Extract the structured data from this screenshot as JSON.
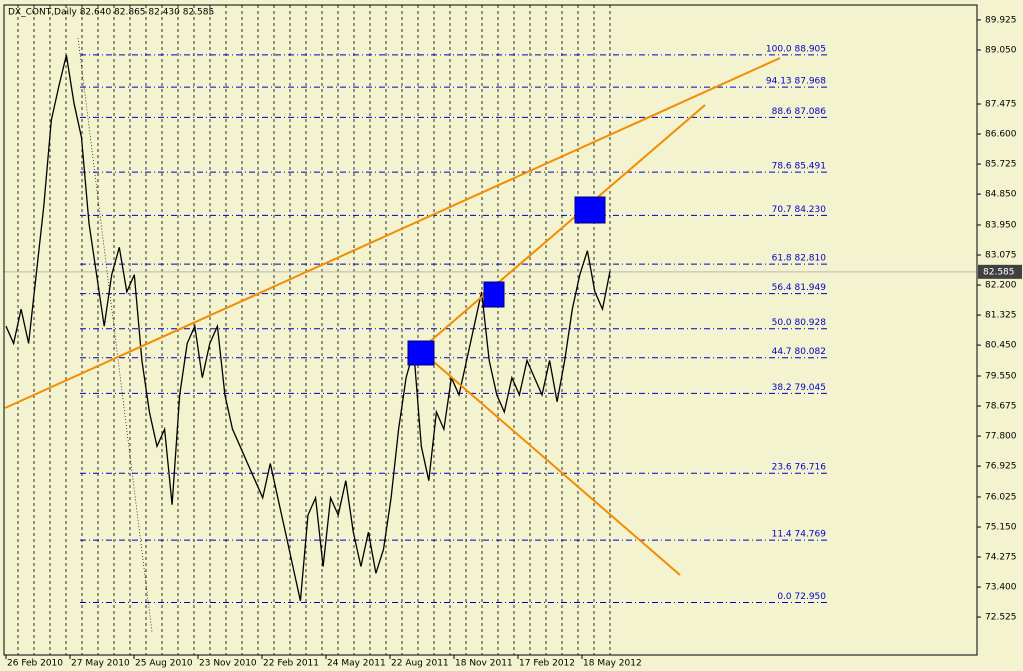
{
  "chart_data": {
    "type": "line",
    "title": "DX_CONT,Daily  82.640 82.865 82.430 82.585",
    "color": "#000000",
    "background": "#f4f3cf",
    "ylim": [
      71.42,
      90.36
    ],
    "yticks": [
      89.925,
      {
        "value": 89.05,
        "label": "89.050"
      },
      87.475,
      {
        "value": 86.6,
        "label": "86.600"
      },
      85.725,
      {
        "value": 84.85,
        "label": "84.850"
      },
      {
        "value": 83.95,
        "label": "83.950"
      },
      83.075,
      {
        "value": 82.2,
        "label": "82.200"
      },
      81.325,
      {
        "value": 80.45,
        "label": "80.450"
      },
      {
        "value": 79.55,
        "label": "79.550"
      },
      78.675,
      {
        "value": 77.8,
        "label": "77.800"
      },
      76.925,
      76.025,
      {
        "value": 75.15,
        "label": "75.150"
      },
      74.275,
      {
        "value": 73.4,
        "label": "73.400"
      },
      72.525
    ],
    "current_price": 82.585,
    "x_labels": [
      "26 Feb 2010",
      "27 May 2010",
      "25 Aug 2010",
      "23 Nov 2010",
      "22 Feb 2011",
      "24 May 2011",
      "22 Aug 2011",
      "18 Nov 2011",
      "17 Feb 2012",
      "18 May 2012"
    ],
    "fib_color": "#0000c8",
    "fib_levels": [
      {
        "label": "100.0 88.905",
        "value": 88.905
      },
      {
        "label": "94.13 87.968",
        "value": 87.968
      },
      {
        "label": "88.6 87.086",
        "value": 87.086
      },
      {
        "label": "78.6 85.491",
        "value": 85.491
      },
      {
        "label": "70.7 84.230",
        "value": 84.23
      },
      {
        "label": "61.8 82.810",
        "value": 82.81
      },
      {
        "label": "56.4 81.949",
        "value": 81.949
      },
      {
        "label": "50.0 80.928",
        "value": 80.928
      },
      {
        "label": "44.7 80.082",
        "value": 80.082
      },
      {
        "label": "38.2 79.045",
        "value": 79.045
      },
      {
        "label": "23.6 76.716",
        "value": 76.716
      },
      {
        "label": "11.4 74.769",
        "value": 74.769
      },
      {
        "label": "0.0 72.950",
        "value": 72.95
      }
    ],
    "values": [
      81.0,
      80.5,
      81.5,
      80.5,
      82.5,
      84.5,
      87.0,
      88.0,
      88.9,
      87.5,
      86.5,
      84.0,
      82.5,
      81.0,
      82.5,
      83.3,
      82.0,
      82.5,
      80.0,
      78.5,
      77.5,
      78.0,
      75.8,
      79.0,
      80.5,
      81.0,
      79.5,
      80.5,
      81.0,
      79.0,
      78.0,
      77.5,
      77.0,
      76.5,
      76.0,
      77.0,
      76.0,
      75.0,
      74.0,
      73.0,
      75.5,
      76.0,
      74.0,
      76.0,
      75.5,
      76.5,
      75.0,
      74.0,
      75.0,
      73.8,
      74.5,
      76.0,
      78.0,
      79.5,
      80.3,
      77.5,
      76.5,
      78.5,
      78.0,
      79.5,
      79.0,
      80.0,
      81.0,
      82.0,
      80.0,
      79.0,
      78.5,
      79.5,
      79.0,
      80.0,
      79.5,
      79.0,
      80.0,
      78.8,
      80.0,
      81.5,
      82.5,
      83.2,
      82.0,
      81.5,
      82.6
    ]
  }
}
